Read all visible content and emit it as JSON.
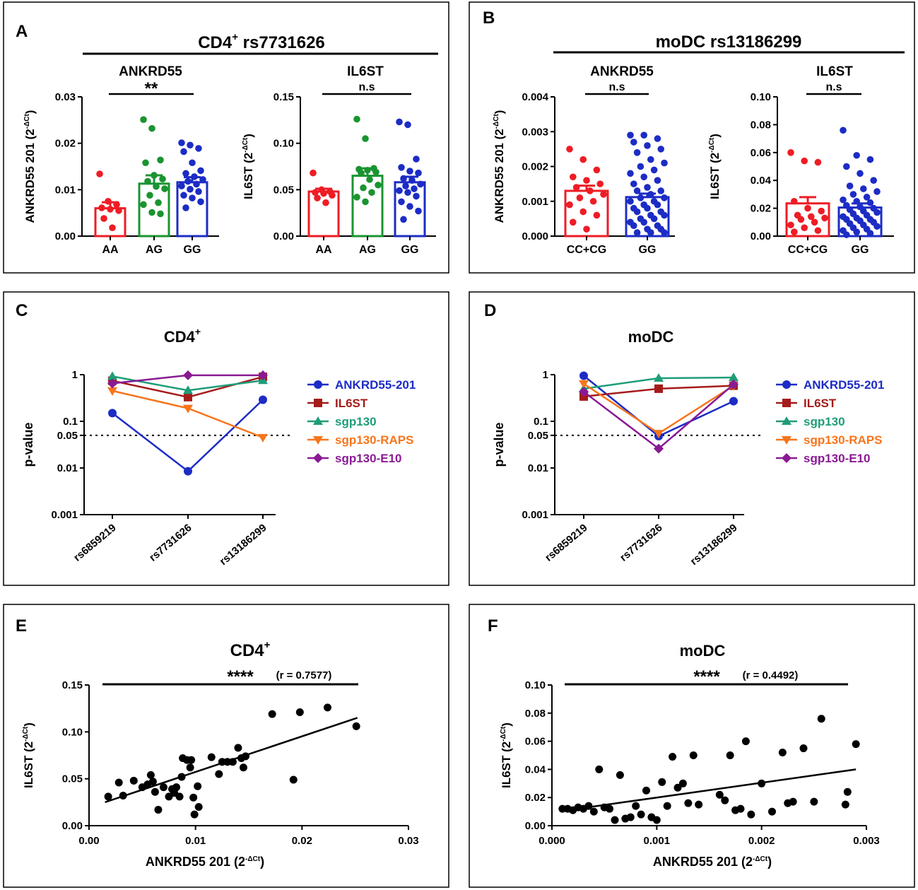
{
  "colors": {
    "red": "#ee1c25",
    "green": "#1a9430",
    "blue": "#1c2cc5",
    "darkred": "#a51b1b",
    "teal": "#1e9d78",
    "orange": "#f7751c",
    "purple": "#8a1a94",
    "black": "#000000"
  },
  "panels": {
    "A": {
      "letter": "A",
      "header": "CD4",
      "header_sup": "+",
      "header_rest": " rs7731626"
    },
    "B": {
      "letter": "B",
      "header": "moDC rs13186299"
    },
    "C": {
      "letter": "C",
      "title": "CD4",
      "title_sup": "+"
    },
    "D": {
      "letter": "D",
      "title": "moDC"
    },
    "E": {
      "letter": "E",
      "title": "CD4",
      "title_sup": "+"
    },
    "F": {
      "letter": "F",
      "title": "moDC"
    }
  },
  "chart_data": [
    {
      "id": "A1",
      "type": "bar",
      "title": "ANKRD55",
      "ylabel": "ANKRD55 201 (2",
      "ylabel_sup": "-ΔCt",
      "ylabel_end": ")",
      "ylim": [
        0,
        0.03
      ],
      "yticks": [
        "0.00",
        "0.01",
        "0.02",
        "0.03"
      ],
      "categories": [
        "AA",
        "AG",
        "GG"
      ],
      "means": [
        0.006,
        0.0113,
        0.0116
      ],
      "sem": [
        0.0013,
        0.0018,
        0.0011
      ],
      "colors": [
        "red",
        "green",
        "blue"
      ],
      "points": [
        [
          0.0134,
          0.0075,
          0.0068,
          0.0061,
          0.0058,
          0.0055,
          0.0038,
          0.0018
        ],
        [
          0.0251,
          0.0232,
          0.0164,
          0.0158,
          0.0131,
          0.0123,
          0.0118,
          0.0107,
          0.0102,
          0.0088,
          0.0072,
          0.0068,
          0.0051,
          0.0048
        ],
        [
          0.0201,
          0.0196,
          0.0189,
          0.0182,
          0.0158,
          0.0141,
          0.0135,
          0.0128,
          0.0122,
          0.0118,
          0.0112,
          0.0108,
          0.0101,
          0.0096,
          0.0088,
          0.0082,
          0.0074,
          0.0061
        ]
      ],
      "annotation": {
        "text": "**",
        "from": 0,
        "to": 2
      }
    },
    {
      "id": "A2",
      "type": "bar",
      "title": "IL6ST",
      "ylabel": "IL6ST (2",
      "ylabel_sup": "-ΔCt",
      "ylabel_end": ")",
      "ylim": [
        0,
        0.15
      ],
      "yticks": [
        "0.00",
        "0.05",
        "0.10",
        "0.15"
      ],
      "categories": [
        "AA",
        "AG",
        "GG"
      ],
      "means": [
        0.048,
        0.065,
        0.058
      ],
      "sem": [
        0.003,
        0.008,
        0.006
      ],
      "colors": [
        "red",
        "green",
        "blue"
      ],
      "points": [
        [
          0.068,
          0.05,
          0.048,
          0.047,
          0.046,
          0.044,
          0.041,
          0.036
        ],
        [
          0.126,
          0.105,
          0.073,
          0.072,
          0.071,
          0.069,
          0.068,
          0.061,
          0.055,
          0.052,
          0.047,
          0.042,
          0.037
        ],
        [
          0.123,
          0.12,
          0.083,
          0.074,
          0.07,
          0.068,
          0.062,
          0.06,
          0.056,
          0.054,
          0.051,
          0.049,
          0.047,
          0.043,
          0.037,
          0.032,
          0.027,
          0.018
        ]
      ],
      "annotation": {
        "text": "n.s",
        "from": 0,
        "to": 2
      }
    },
    {
      "id": "B1",
      "type": "bar",
      "title": "ANKRD55",
      "ylabel": "ANKRD55 201 (2",
      "ylabel_sup": "-ΔCt",
      "ylabel_end": ")",
      "ylim": [
        0,
        0.004
      ],
      "yticks": [
        "0.000",
        "0.001",
        "0.002",
        "0.003",
        "0.004"
      ],
      "categories": [
        "CC+CG",
        "GG"
      ],
      "means": [
        0.0013,
        0.00112
      ],
      "sem": [
        0.00015,
        0.0001
      ],
      "colors": [
        "red",
        "blue"
      ],
      "points": [
        [
          0.0025,
          0.0022,
          0.0019,
          0.0017,
          0.0016,
          0.0015,
          0.0014,
          0.0013,
          0.0012,
          0.0011,
          0.001,
          0.0009,
          0.0007,
          0.0006,
          0.0004,
          0.0002
        ],
        [
          0.0029,
          0.0029,
          0.0028,
          0.0027,
          0.0026,
          0.0025,
          0.0024,
          0.0022,
          0.0021,
          0.002,
          0.0019,
          0.0018,
          0.0017,
          0.0016,
          0.0015,
          0.0014,
          0.0013,
          0.0013,
          0.0012,
          0.0011,
          0.0011,
          0.001,
          0.001,
          0.0009,
          0.0009,
          0.0008,
          0.0008,
          0.0007,
          0.0007,
          0.0006,
          0.0006,
          0.0005,
          0.0005,
          0.0004,
          0.0004,
          0.0003,
          0.0003,
          0.0002,
          0.0002,
          0.0001,
          0.0001,
          0.0001
        ]
      ],
      "annotation": {
        "text": "n.s",
        "from": 0,
        "to": 1
      }
    },
    {
      "id": "B2",
      "type": "bar",
      "title": "IL6ST",
      "ylabel": "IL6ST (2",
      "ylabel_sup": "-ΔCt",
      "ylabel_end": ")",
      "ylim": [
        0,
        0.1
      ],
      "yticks": [
        "0.00",
        "0.02",
        "0.04",
        "0.06",
        "0.08",
        "0.10"
      ],
      "categories": [
        "CC+CG",
        "GG"
      ],
      "means": [
        0.0235,
        0.0205
      ],
      "sem": [
        0.0045,
        0.003
      ],
      "colors": [
        "red",
        "blue"
      ],
      "points": [
        [
          0.06,
          0.054,
          0.053,
          0.025,
          0.02,
          0.018,
          0.015,
          0.014,
          0.013,
          0.012,
          0.01,
          0.008,
          0.006,
          0.004,
          0.003
        ],
        [
          0.076,
          0.058,
          0.055,
          0.05,
          0.045,
          0.04,
          0.036,
          0.034,
          0.032,
          0.03,
          0.028,
          0.026,
          0.025,
          0.024,
          0.022,
          0.021,
          0.02,
          0.019,
          0.018,
          0.017,
          0.016,
          0.015,
          0.014,
          0.013,
          0.012,
          0.012,
          0.011,
          0.01,
          0.009,
          0.008,
          0.007,
          0.006,
          0.005,
          0.004,
          0.003,
          0.002,
          0.001
        ]
      ],
      "annotation": {
        "text": "n.s",
        "from": 0,
        "to": 1
      }
    },
    {
      "id": "C",
      "type": "line",
      "yscale": "log",
      "ylabel": "p-value",
      "ylim": [
        0.001,
        1
      ],
      "yticks": [
        "0.001",
        "0.01",
        "0.05",
        "0.1",
        "1"
      ],
      "categories": [
        "rs6859219",
        "rs7731626",
        "rs13186299"
      ],
      "threshold": 0.05,
      "series": [
        {
          "name": "ANKRD55-201",
          "color": "blue",
          "marker": "circle",
          "values": [
            0.15,
            0.0085,
            0.29
          ]
        },
        {
          "name": "IL6ST",
          "color": "darkred",
          "marker": "square",
          "values": [
            0.74,
            0.33,
            0.9
          ]
        },
        {
          "name": "sgp130",
          "color": "teal",
          "marker": "triangle-up",
          "values": [
            0.92,
            0.46,
            0.75
          ]
        },
        {
          "name": "sgp130-RAPS",
          "color": "orange",
          "marker": "triangle-down",
          "values": [
            0.45,
            0.19,
            0.045
          ]
        },
        {
          "name": "sgp130-E10",
          "color": "purple",
          "marker": "diamond",
          "values": [
            0.65,
            0.97,
            0.97
          ]
        }
      ]
    },
    {
      "id": "D",
      "type": "line",
      "yscale": "log",
      "ylabel": "p-value",
      "ylim": [
        0.001,
        1
      ],
      "yticks": [
        "0.001",
        "0.01",
        "0.05",
        "0.1",
        "1"
      ],
      "categories": [
        "rs6859219",
        "rs7731626",
        "rs13186299"
      ],
      "threshold": 0.05,
      "series": [
        {
          "name": "ANKRD55-201",
          "color": "blue",
          "marker": "circle",
          "values": [
            0.95,
            0.048,
            0.27
          ]
        },
        {
          "name": "IL6ST",
          "color": "darkred",
          "marker": "square",
          "values": [
            0.34,
            0.5,
            0.58
          ]
        },
        {
          "name": "sgp130",
          "color": "teal",
          "marker": "triangle-up",
          "values": [
            0.5,
            0.84,
            0.87
          ]
        },
        {
          "name": "sgp130-RAPS",
          "color": "orange",
          "marker": "triangle-down",
          "values": [
            0.64,
            0.055,
            0.58
          ]
        },
        {
          "name": "sgp130-E10",
          "color": "purple",
          "marker": "diamond",
          "values": [
            0.43,
            0.026,
            0.62
          ]
        }
      ]
    },
    {
      "id": "E",
      "type": "scatter",
      "xlabel": "ANKRD55 201 (2",
      "xlabel_sup": "-ΔCt",
      "xlabel_end": ")",
      "ylabel": "IL6ST (2",
      "ylabel_sup": "-ΔCt",
      "ylabel_end": ")",
      "xlim": [
        0,
        0.03
      ],
      "ylim": [
        0,
        0.15
      ],
      "xticks": [
        "0.00",
        "0.01",
        "0.02",
        "0.03"
      ],
      "yticks": [
        "0.00",
        "0.05",
        "0.10",
        "0.15"
      ],
      "annotation": "****",
      "r_text": "(r = 0.7577)",
      "fit": {
        "x": [
          0.0015,
          0.0252
        ],
        "y": [
          0.025,
          0.115
        ]
      },
      "points": [
        [
          0.0018,
          0.031
        ],
        [
          0.0028,
          0.046
        ],
        [
          0.0032,
          0.032
        ],
        [
          0.0042,
          0.048
        ],
        [
          0.005,
          0.041
        ],
        [
          0.0055,
          0.044
        ],
        [
          0.0058,
          0.054
        ],
        [
          0.006,
          0.047
        ],
        [
          0.0062,
          0.036
        ],
        [
          0.0065,
          0.017
        ],
        [
          0.007,
          0.041
        ],
        [
          0.0075,
          0.031
        ],
        [
          0.0078,
          0.039
        ],
        [
          0.008,
          0.035
        ],
        [
          0.0082,
          0.041
        ],
        [
          0.0085,
          0.031
        ],
        [
          0.0087,
          0.052
        ],
        [
          0.0088,
          0.072
        ],
        [
          0.0092,
          0.07
        ],
        [
          0.0095,
          0.062
        ],
        [
          0.0096,
          0.07
        ],
        [
          0.0098,
          0.03
        ],
        [
          0.0099,
          0.012
        ],
        [
          0.0102,
          0.042
        ],
        [
          0.0103,
          0.02
        ],
        [
          0.0115,
          0.073
        ],
        [
          0.0122,
          0.055
        ],
        [
          0.0125,
          0.068
        ],
        [
          0.013,
          0.068
        ],
        [
          0.0135,
          0.068
        ],
        [
          0.014,
          0.083
        ],
        [
          0.0143,
          0.072
        ],
        [
          0.0145,
          0.062
        ],
        [
          0.0147,
          0.074
        ],
        [
          0.0172,
          0.119
        ],
        [
          0.0192,
          0.049
        ],
        [
          0.0198,
          0.121
        ],
        [
          0.0224,
          0.126
        ],
        [
          0.0251,
          0.106
        ]
      ]
    },
    {
      "id": "F",
      "type": "scatter",
      "xlabel": "ANKRD55 201 (2",
      "xlabel_sup": "-ΔCt",
      "xlabel_end": ")",
      "ylabel": "IL6ST (2",
      "ylabel_sup": "-ΔCt",
      "ylabel_end": ")",
      "xlim": [
        0,
        0.003
      ],
      "ylim": [
        0,
        0.1
      ],
      "xticks": [
        "0.000",
        "0.001",
        "0.002",
        "0.003"
      ],
      "yticks": [
        "0.00",
        "0.02",
        "0.04",
        "0.06",
        "0.08",
        "0.10"
      ],
      "annotation": "****",
      "r_text": "(r = 0.4492)",
      "fit": {
        "x": [
          0.0001,
          0.0029
        ],
        "y": [
          0.0105,
          0.04
        ]
      },
      "points": [
        [
          0.0001,
          0.012
        ],
        [
          0.00015,
          0.012
        ],
        [
          0.0002,
          0.011
        ],
        [
          0.00025,
          0.013
        ],
        [
          0.0003,
          0.012
        ],
        [
          0.00035,
          0.014
        ],
        [
          0.0004,
          0.01
        ],
        [
          0.00045,
          0.04
        ],
        [
          0.0005,
          0.013
        ],
        [
          0.00055,
          0.012
        ],
        [
          0.0006,
          0.004
        ],
        [
          0.00065,
          0.036
        ],
        [
          0.0007,
          0.005
        ],
        [
          0.00075,
          0.006
        ],
        [
          0.0008,
          0.014
        ],
        [
          0.00085,
          0.008
        ],
        [
          0.0009,
          0.025
        ],
        [
          0.00095,
          0.006
        ],
        [
          0.001,
          0.004
        ],
        [
          0.00105,
          0.031
        ],
        [
          0.0011,
          0.014
        ],
        [
          0.00115,
          0.049
        ],
        [
          0.0012,
          0.027
        ],
        [
          0.00125,
          0.03
        ],
        [
          0.0013,
          0.016
        ],
        [
          0.00135,
          0.05
        ],
        [
          0.0014,
          0.015
        ],
        [
          0.0016,
          0.022
        ],
        [
          0.00165,
          0.018
        ],
        [
          0.0017,
          0.05
        ],
        [
          0.00175,
          0.011
        ],
        [
          0.0018,
          0.012
        ],
        [
          0.00185,
          0.06
        ],
        [
          0.0019,
          0.008
        ],
        [
          0.002,
          0.03
        ],
        [
          0.0021,
          0.01
        ],
        [
          0.0022,
          0.052
        ],
        [
          0.00225,
          0.016
        ],
        [
          0.0023,
          0.017
        ],
        [
          0.0024,
          0.055
        ],
        [
          0.0025,
          0.017
        ],
        [
          0.00257,
          0.076
        ],
        [
          0.0028,
          0.015
        ],
        [
          0.00282,
          0.024
        ],
        [
          0.0029,
          0.058
        ]
      ]
    }
  ]
}
